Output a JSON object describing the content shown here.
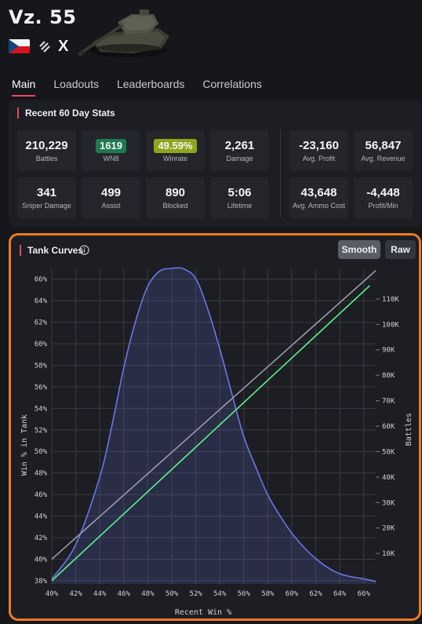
{
  "header": {
    "title": "Vz. 55",
    "tier": "X",
    "nation_icon": "czech-flag-icon",
    "class_icon": "heavy-tank-icon"
  },
  "tabs": [
    {
      "label": "Main",
      "active": true
    },
    {
      "label": "Loadouts",
      "active": false
    },
    {
      "label": "Leaderboards",
      "active": false
    },
    {
      "label": "Correlations",
      "active": false
    }
  ],
  "stats": {
    "title": "Recent 60 Day Stats",
    "left": [
      {
        "value": "210,229",
        "label": "Battles"
      },
      {
        "value": "1619",
        "label": "WN8",
        "badge_color": "#1f7a4d"
      },
      {
        "value": "49.59%",
        "label": "Winrate",
        "badge_color": "#8fa51a"
      },
      {
        "value": "2,261",
        "label": "Damage"
      },
      {
        "value": "341",
        "label": "Sniper Damage"
      },
      {
        "value": "499",
        "label": "Assist"
      },
      {
        "value": "890",
        "label": "Blocked"
      },
      {
        "value": "5:06",
        "label": "Lifetime"
      }
    ],
    "right": [
      {
        "value": "-23,160",
        "label": "Avg. Profit"
      },
      {
        "value": "56,847",
        "label": "Avg. Revenue"
      },
      {
        "value": "43,648",
        "label": "Avg. Ammo Cost"
      },
      {
        "value": "-4,448",
        "label": "Profit/Min"
      }
    ]
  },
  "curves": {
    "title": "Tank Curves",
    "smooth_label": "Smooth",
    "raw_label": "Raw",
    "active_mode": "Smooth"
  },
  "chart_data": {
    "type": "line",
    "xlabel": "Recent Win %",
    "ylabel": "Win % in Tank",
    "y2label": "Battles",
    "xlim": [
      40,
      67
    ],
    "ylim": [
      37.7,
      67
    ],
    "y2lim": [
      -2000,
      122000
    ],
    "x_ticks": [
      "40%",
      "42%",
      "44%",
      "46%",
      "48%",
      "50%",
      "52%",
      "54%",
      "56%",
      "58%",
      "60%",
      "62%",
      "64%",
      "66%"
    ],
    "y_ticks": [
      "38%",
      "40%",
      "42%",
      "44%",
      "46%",
      "48%",
      "50%",
      "52%",
      "54%",
      "56%",
      "58%",
      "60%",
      "62%",
      "64%",
      "66%"
    ],
    "y2_ticks": [
      "10K",
      "20K",
      "30K",
      "40K",
      "50K",
      "60K",
      "70K",
      "80K",
      "90K",
      "100K",
      "110K"
    ],
    "grid": true,
    "colors": {
      "battles": "#6b76e8",
      "win_rate": "#5cf08c",
      "reference": "#9a9aa8"
    },
    "series": [
      {
        "axis": "y2",
        "x": [
          40,
          42,
          44,
          45,
          46,
          47,
          48,
          49,
          50,
          50.5,
          51,
          52,
          53,
          54,
          55,
          56,
          57,
          58,
          59,
          60,
          61,
          62,
          63,
          64,
          65,
          66,
          67
        ],
        "values": [
          0,
          13500,
          40000,
          60000,
          83000,
          101500,
          115000,
          121000,
          122000,
          122200,
          121800,
          118000,
          106000,
          90500,
          73000,
          56000,
          44000,
          33000,
          25000,
          18000,
          12500,
          8000,
          4500,
          2000,
          800,
          0,
          -1000
        ]
      },
      {
        "axis": "y",
        "x": [
          40,
          66.5
        ],
        "values": [
          38.0,
          65.4
        ]
      },
      {
        "axis": "y",
        "x": [
          40,
          67
        ],
        "values": [
          40.0,
          66.8
        ]
      }
    ]
  }
}
